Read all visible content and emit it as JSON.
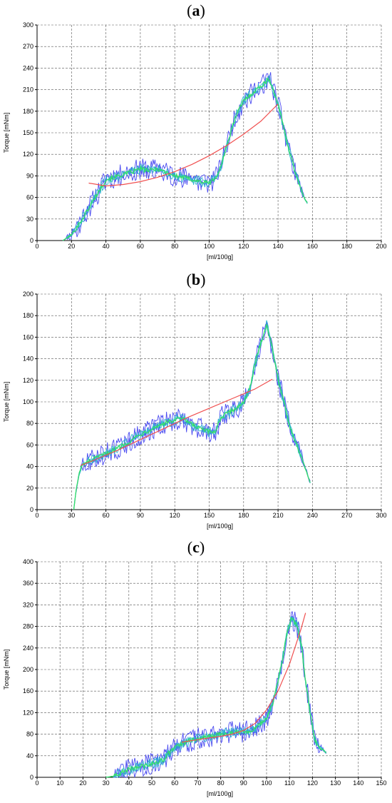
{
  "chart_data": [
    {
      "panel_label": "a",
      "type": "line",
      "xlabel": "[ml/100g]",
      "ylabel": "Torque [mNm]",
      "xlim": [
        0,
        200
      ],
      "ylim": [
        0,
        300
      ],
      "xticks": [
        0,
        20,
        40,
        60,
        80,
        100,
        120,
        140,
        160,
        180,
        200
      ],
      "yticks": [
        0,
        30,
        60,
        90,
        120,
        150,
        180,
        210,
        240,
        270,
        300
      ],
      "grid": true,
      "colors": {
        "blue": "#4a4af0",
        "cyan": "#2fb5d0",
        "green": "#33e066",
        "red": "#f05050"
      },
      "torque_curve": {
        "x": [
          15,
          20,
          25,
          30,
          35,
          40,
          45,
          50,
          55,
          60,
          65,
          70,
          75,
          80,
          85,
          90,
          95,
          100,
          105,
          110,
          115,
          120,
          125,
          130,
          135,
          140,
          145,
          150,
          155,
          157
        ],
        "y": [
          0,
          8,
          25,
          45,
          65,
          85,
          88,
          92,
          95,
          100,
          97,
          100,
          95,
          90,
          88,
          85,
          82,
          80,
          90,
          130,
          170,
          195,
          205,
          215,
          225,
          190,
          140,
          95,
          60,
          52
        ]
      },
      "fit_curve": {
        "x": [
          30,
          40,
          50,
          60,
          70,
          80,
          90,
          100,
          110,
          120,
          130,
          140
        ],
        "y": [
          80,
          76,
          78,
          82,
          88,
          96,
          106,
          118,
          132,
          148,
          166,
          190
        ]
      }
    },
    {
      "panel_label": "b",
      "type": "line",
      "xlabel": "[ml/100g]",
      "ylabel": "Torque [mNm]",
      "xlim": [
        0,
        300
      ],
      "ylim": [
        0,
        200
      ],
      "xticks": [
        0,
        30,
        60,
        90,
        120,
        150,
        180,
        210,
        240,
        270,
        300
      ],
      "yticks": [
        0,
        20,
        40,
        60,
        80,
        100,
        120,
        140,
        160,
        180,
        200
      ],
      "grid": true,
      "colors": {
        "blue": "#4a4af0",
        "cyan": "#2fb5d0",
        "green": "#33e066",
        "red": "#f05050"
      },
      "torque_curve": {
        "x": [
          32,
          34,
          37,
          40,
          50,
          60,
          70,
          80,
          90,
          100,
          110,
          120,
          125,
          130,
          140,
          150,
          155,
          160,
          170,
          175,
          180,
          185,
          190,
          195,
          200,
          205,
          210,
          215,
          220,
          230,
          238
        ],
        "y": [
          0,
          18,
          35,
          42,
          47,
          52,
          57,
          63,
          70,
          75,
          80,
          83,
          85,
          82,
          76,
          72,
          72,
          85,
          92,
          95,
          100,
          110,
          135,
          155,
          172,
          150,
          122,
          100,
          78,
          50,
          25
        ]
      },
      "fit_curve": {
        "x": [
          38,
          50,
          70,
          90,
          110,
          130,
          150,
          170,
          190,
          205
        ],
        "y": [
          41,
          46,
          55,
          65,
          75,
          85,
          94,
          103,
          112,
          121
        ]
      }
    },
    {
      "panel_label": "c",
      "type": "line",
      "xlabel": "[ml/100g]",
      "ylabel": "Torque [mNm]",
      "xlim": [
        0,
        150
      ],
      "ylim": [
        0,
        400
      ],
      "xticks": [
        0,
        10,
        20,
        30,
        40,
        50,
        60,
        70,
        80,
        90,
        100,
        110,
        120,
        130,
        140,
        150
      ],
      "yticks": [
        0,
        40,
        80,
        120,
        160,
        200,
        240,
        280,
        320,
        360,
        400
      ],
      "grid": true,
      "colors": {
        "blue": "#4a4af0",
        "cyan": "#2fb5d0",
        "green": "#33e066",
        "red": "#f05050"
      },
      "torque_curve": {
        "x": [
          30,
          33,
          35,
          40,
          45,
          50,
          55,
          58,
          60,
          65,
          70,
          75,
          80,
          85,
          90,
          95,
          100,
          103,
          105,
          107,
          109,
          111,
          113,
          115,
          117,
          119,
          121,
          123,
          125,
          126
        ],
        "y": [
          0,
          2,
          5,
          15,
          20,
          25,
          32,
          48,
          55,
          65,
          72,
          75,
          80,
          84,
          84,
          90,
          110,
          140,
          180,
          220,
          270,
          295,
          285,
          250,
          180,
          120,
          70,
          55,
          50,
          45
        ]
      },
      "fit_curve": {
        "x": [
          63,
          70,
          80,
          85,
          90,
          95,
          100,
          105,
          110,
          115,
          117
        ],
        "y": [
          65,
          70,
          76,
          80,
          87,
          100,
          125,
          160,
          210,
          275,
          305
        ]
      }
    }
  ]
}
